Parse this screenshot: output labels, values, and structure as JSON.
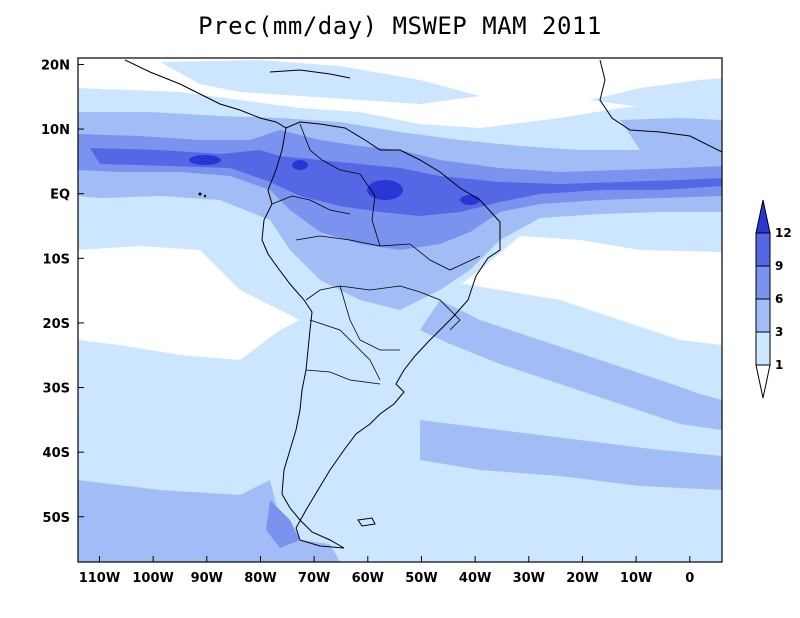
{
  "title": "Prec(mm/day) MSWEP MAM 2011",
  "map": {
    "lon_range": [
      -114,
      6
    ],
    "lat_range": [
      -57,
      21
    ],
    "lon_ticks": [
      {
        "value": -110,
        "label": "110W"
      },
      {
        "value": -100,
        "label": "100W"
      },
      {
        "value": -90,
        "label": "90W"
      },
      {
        "value": -80,
        "label": "80W"
      },
      {
        "value": -70,
        "label": "70W"
      },
      {
        "value": -60,
        "label": "60W"
      },
      {
        "value": -50,
        "label": "50W"
      },
      {
        "value": -40,
        "label": "40W"
      },
      {
        "value": -30,
        "label": "30W"
      },
      {
        "value": -20,
        "label": "20W"
      },
      {
        "value": -10,
        "label": "10W"
      },
      {
        "value": 0,
        "label": "0"
      }
    ],
    "lat_ticks": [
      {
        "value": 20,
        "label": "20N"
      },
      {
        "value": 10,
        "label": "10N"
      },
      {
        "value": 0,
        "label": "EQ"
      },
      {
        "value": -10,
        "label": "10S"
      },
      {
        "value": -20,
        "label": "20S"
      },
      {
        "value": -30,
        "label": "30S"
      },
      {
        "value": -40,
        "label": "40S"
      },
      {
        "value": -50,
        "label": "50S"
      }
    ]
  },
  "colorbar": {
    "levels": [
      "1",
      "3",
      "6",
      "9",
      "12"
    ],
    "colors": [
      "#ffffff",
      "#cde6ff",
      "#a2bdf6",
      "#7a93ee",
      "#5468e6",
      "#2a35d6"
    ]
  },
  "colors": {
    "c1": "#cde6ff",
    "c2": "#a2bdf6",
    "c3": "#7a93ee",
    "c4": "#5468e6",
    "c5": "#2a35d6"
  }
}
